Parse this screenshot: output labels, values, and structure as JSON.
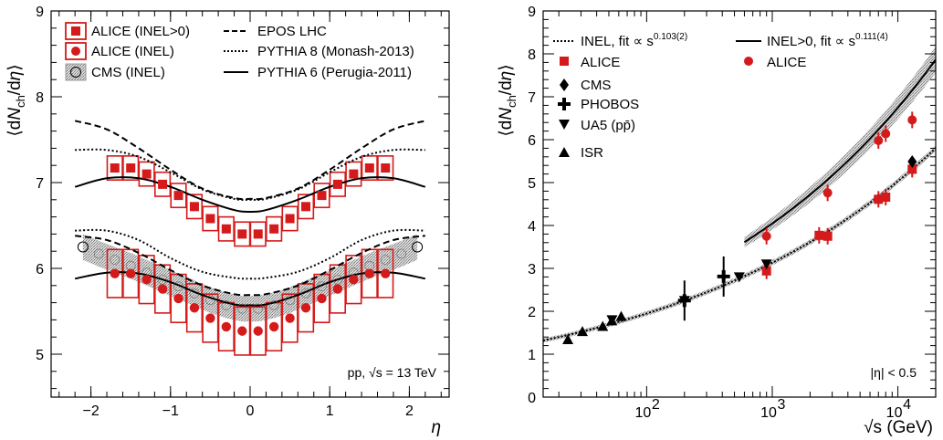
{
  "chart_data": [
    {
      "type": "scatter",
      "panel": "left",
      "xlabel": "η",
      "ylabel": "⟨dN_ch/dη⟩",
      "xlim": [
        -2.5,
        2.5
      ],
      "ylim": [
        4.5,
        9
      ],
      "x_ticks": [
        "−2",
        "−1",
        "0",
        "1",
        "2"
      ],
      "y_ticks": [
        "5",
        "6",
        "7",
        "8",
        "9"
      ],
      "annotation": "pp, √s = 13 TeV",
      "legend": {
        "alice_inel_gt0": "ALICE (INEL>0)",
        "alice_inel": "ALICE (INEL)",
        "cms_inel": "CMS (INEL)",
        "epos": "EPOS LHC",
        "pythia8": "PYTHIA 8 (Monash-2013)",
        "pythia6": "PYTHIA 6 (Perugia-2011)"
      },
      "eta": [
        -1.7,
        -1.5,
        -1.3,
        -1.1,
        -0.9,
        -0.7,
        -0.5,
        -0.3,
        -0.1,
        0.1,
        0.3,
        0.5,
        0.7,
        0.9,
        1.1,
        1.3,
        1.5,
        1.7
      ],
      "series": [
        {
          "name": "ALICE (INEL>0)",
          "values": [
            7.17,
            7.17,
            7.1,
            6.98,
            6.85,
            6.72,
            6.58,
            6.46,
            6.4,
            6.4,
            6.46,
            6.58,
            6.72,
            6.85,
            6.98,
            7.1,
            7.17,
            7.17
          ],
          "sys": 0.14
        },
        {
          "name": "ALICE (INEL)",
          "values": [
            5.94,
            5.94,
            5.87,
            5.76,
            5.65,
            5.54,
            5.42,
            5.32,
            5.27,
            5.27,
            5.32,
            5.42,
            5.54,
            5.65,
            5.76,
            5.87,
            5.94,
            5.94
          ],
          "sys": 0.28
        },
        {
          "name": "CMS (INEL)",
          "x": [
            -2.1,
            -1.9,
            -1.7,
            -1.5,
            -1.3,
            -1.1,
            -0.9,
            -0.7,
            -0.5,
            -0.3,
            -0.1,
            0.1,
            0.3,
            0.5,
            0.7,
            0.9,
            1.1,
            1.3,
            1.5,
            1.7,
            1.9,
            2.1
          ],
          "values": [
            6.25,
            6.17,
            6.1,
            6.03,
            5.95,
            5.87,
            5.79,
            5.71,
            5.63,
            5.57,
            5.53,
            5.53,
            5.57,
            5.63,
            5.71,
            5.79,
            5.87,
            5.95,
            6.03,
            6.1,
            6.17,
            6.25
          ],
          "band": 0.15
        }
      ],
      "curves": [
        {
          "name": "EPOS LHC (INEL>0)",
          "eta": [
            -2.2,
            -1.8,
            -1.4,
            -1.0,
            -0.6,
            -0.2,
            0.0,
            0.2,
            0.6,
            1.0,
            1.4,
            1.8,
            2.2
          ],
          "values": [
            7.72,
            7.62,
            7.4,
            7.15,
            6.93,
            6.82,
            6.81,
            6.82,
            6.93,
            7.15,
            7.4,
            7.62,
            7.72
          ]
        },
        {
          "name": "PYTHIA 8 (INEL>0)",
          "eta": [
            -2.2,
            -1.8,
            -1.4,
            -1.0,
            -0.6,
            -0.2,
            0.0,
            0.2,
            0.6,
            1.0,
            1.4,
            1.8,
            2.2
          ],
          "values": [
            7.38,
            7.38,
            7.3,
            7.12,
            6.92,
            6.81,
            6.8,
            6.81,
            6.92,
            7.12,
            7.3,
            7.38,
            7.38
          ]
        },
        {
          "name": "PYTHIA 6 (INEL>0)",
          "eta": [
            -2.2,
            -1.8,
            -1.4,
            -1.0,
            -0.6,
            -0.2,
            0.0,
            0.2,
            0.6,
            1.0,
            1.4,
            1.8,
            2.2
          ],
          "values": [
            6.95,
            7.05,
            7.05,
            6.95,
            6.8,
            6.68,
            6.66,
            6.68,
            6.8,
            6.95,
            7.05,
            7.05,
            6.95
          ]
        },
        {
          "name": "EPOS LHC (INEL)",
          "eta": [
            -2.2,
            -1.8,
            -1.4,
            -1.0,
            -0.6,
            -0.2,
            0.0,
            0.2,
            0.6,
            1.0,
            1.4,
            1.8,
            2.2
          ],
          "values": [
            6.38,
            6.33,
            6.18,
            5.98,
            5.8,
            5.7,
            5.69,
            5.7,
            5.8,
            5.98,
            6.18,
            6.33,
            6.38
          ]
        },
        {
          "name": "PYTHIA 8 (INEL)",
          "eta": [
            -2.2,
            -1.8,
            -1.4,
            -1.0,
            -0.6,
            -0.2,
            0.0,
            0.2,
            0.6,
            1.0,
            1.4,
            1.8,
            2.2
          ],
          "values": [
            6.44,
            6.44,
            6.33,
            6.12,
            5.96,
            5.89,
            5.88,
            5.89,
            5.96,
            6.12,
            6.33,
            6.44,
            6.44
          ]
        },
        {
          "name": "PYTHIA 6 (INEL)",
          "eta": [
            -2.2,
            -1.8,
            -1.4,
            -1.0,
            -0.6,
            -0.2,
            0.0,
            0.2,
            0.6,
            1.0,
            1.4,
            1.8,
            2.2
          ],
          "values": [
            5.88,
            5.95,
            5.94,
            5.84,
            5.69,
            5.58,
            5.57,
            5.58,
            5.69,
            5.84,
            5.94,
            5.95,
            5.88
          ]
        }
      ]
    },
    {
      "type": "scatter",
      "panel": "right",
      "xlabel": "√s (GeV)",
      "ylabel": "⟨dN_ch/dη⟩",
      "xscale": "log",
      "xlim": [
        15,
        20000
      ],
      "ylim": [
        0,
        9
      ],
      "x_ticks": [
        "10",
        "10"
      ],
      "x_tick_exponents": [
        "2",
        "4"
      ],
      "x_tick_mid": "10",
      "x_tick_mid_exponent": "3",
      "y_ticks": [
        "0",
        "1",
        "2",
        "3",
        "4",
        "5",
        "6",
        "7",
        "8",
        "9"
      ],
      "annotation": "|η| < 0.5",
      "legend": {
        "fit_inel": "INEL, fit ∝ s",
        "fit_inel_exp": "0.103(2)",
        "fit_inelgt0": "INEL>0, fit ∝ s",
        "fit_inelgt0_exp": "0.111(4)",
        "alice_inel": "ALICE",
        "alice_inelgt0": "ALICE",
        "cms": "CMS",
        "phobos": "PHOBOS",
        "ua5": "UA5 (pp̄)",
        "isr": "ISR"
      },
      "series": [
        {
          "name": "ALICE",
          "marker": "square",
          "x": [
            900,
            2360,
            2760,
            7000,
            8000,
            13000
          ],
          "values": [
            2.94,
            3.77,
            3.75,
            4.61,
            4.66,
            5.31
          ]
        },
        {
          "name": "ALICE",
          "marker": "circle",
          "x": [
            900,
            2760,
            7000,
            8000,
            13000
          ],
          "values": [
            3.75,
            4.76,
            5.98,
            6.14,
            6.46
          ]
        },
        {
          "name": "CMS",
          "marker": "diamond",
          "x": [
            13000
          ],
          "values": [
            5.49
          ]
        },
        {
          "name": "PHOBOS",
          "marker": "cross",
          "x": [
            200,
            410
          ],
          "values": [
            2.25,
            2.81
          ]
        },
        {
          "name": "UA5 (pp̄)",
          "marker": "triangle-down",
          "x": [
            53,
            200,
            546,
            900
          ],
          "values": [
            1.8,
            2.25,
            2.8,
            3.1
          ]
        },
        {
          "name": "ISR",
          "marker": "triangle-up",
          "x": [
            23.6,
            30.8,
            44.7,
            52.8,
            62.7
          ],
          "values": [
            1.34,
            1.53,
            1.65,
            1.78,
            1.88
          ]
        }
      ],
      "fits": [
        {
          "name": "INEL",
          "x_range": [
            15,
            20000
          ],
          "exponent": 0.103,
          "anchor_x": 13000,
          "anchor_y": 5.31
        },
        {
          "name": "INEL>0",
          "x_range": [
            600,
            20000
          ],
          "exponent": 0.111,
          "anchor_x": 13000,
          "anchor_y": 7.15
        }
      ]
    }
  ]
}
